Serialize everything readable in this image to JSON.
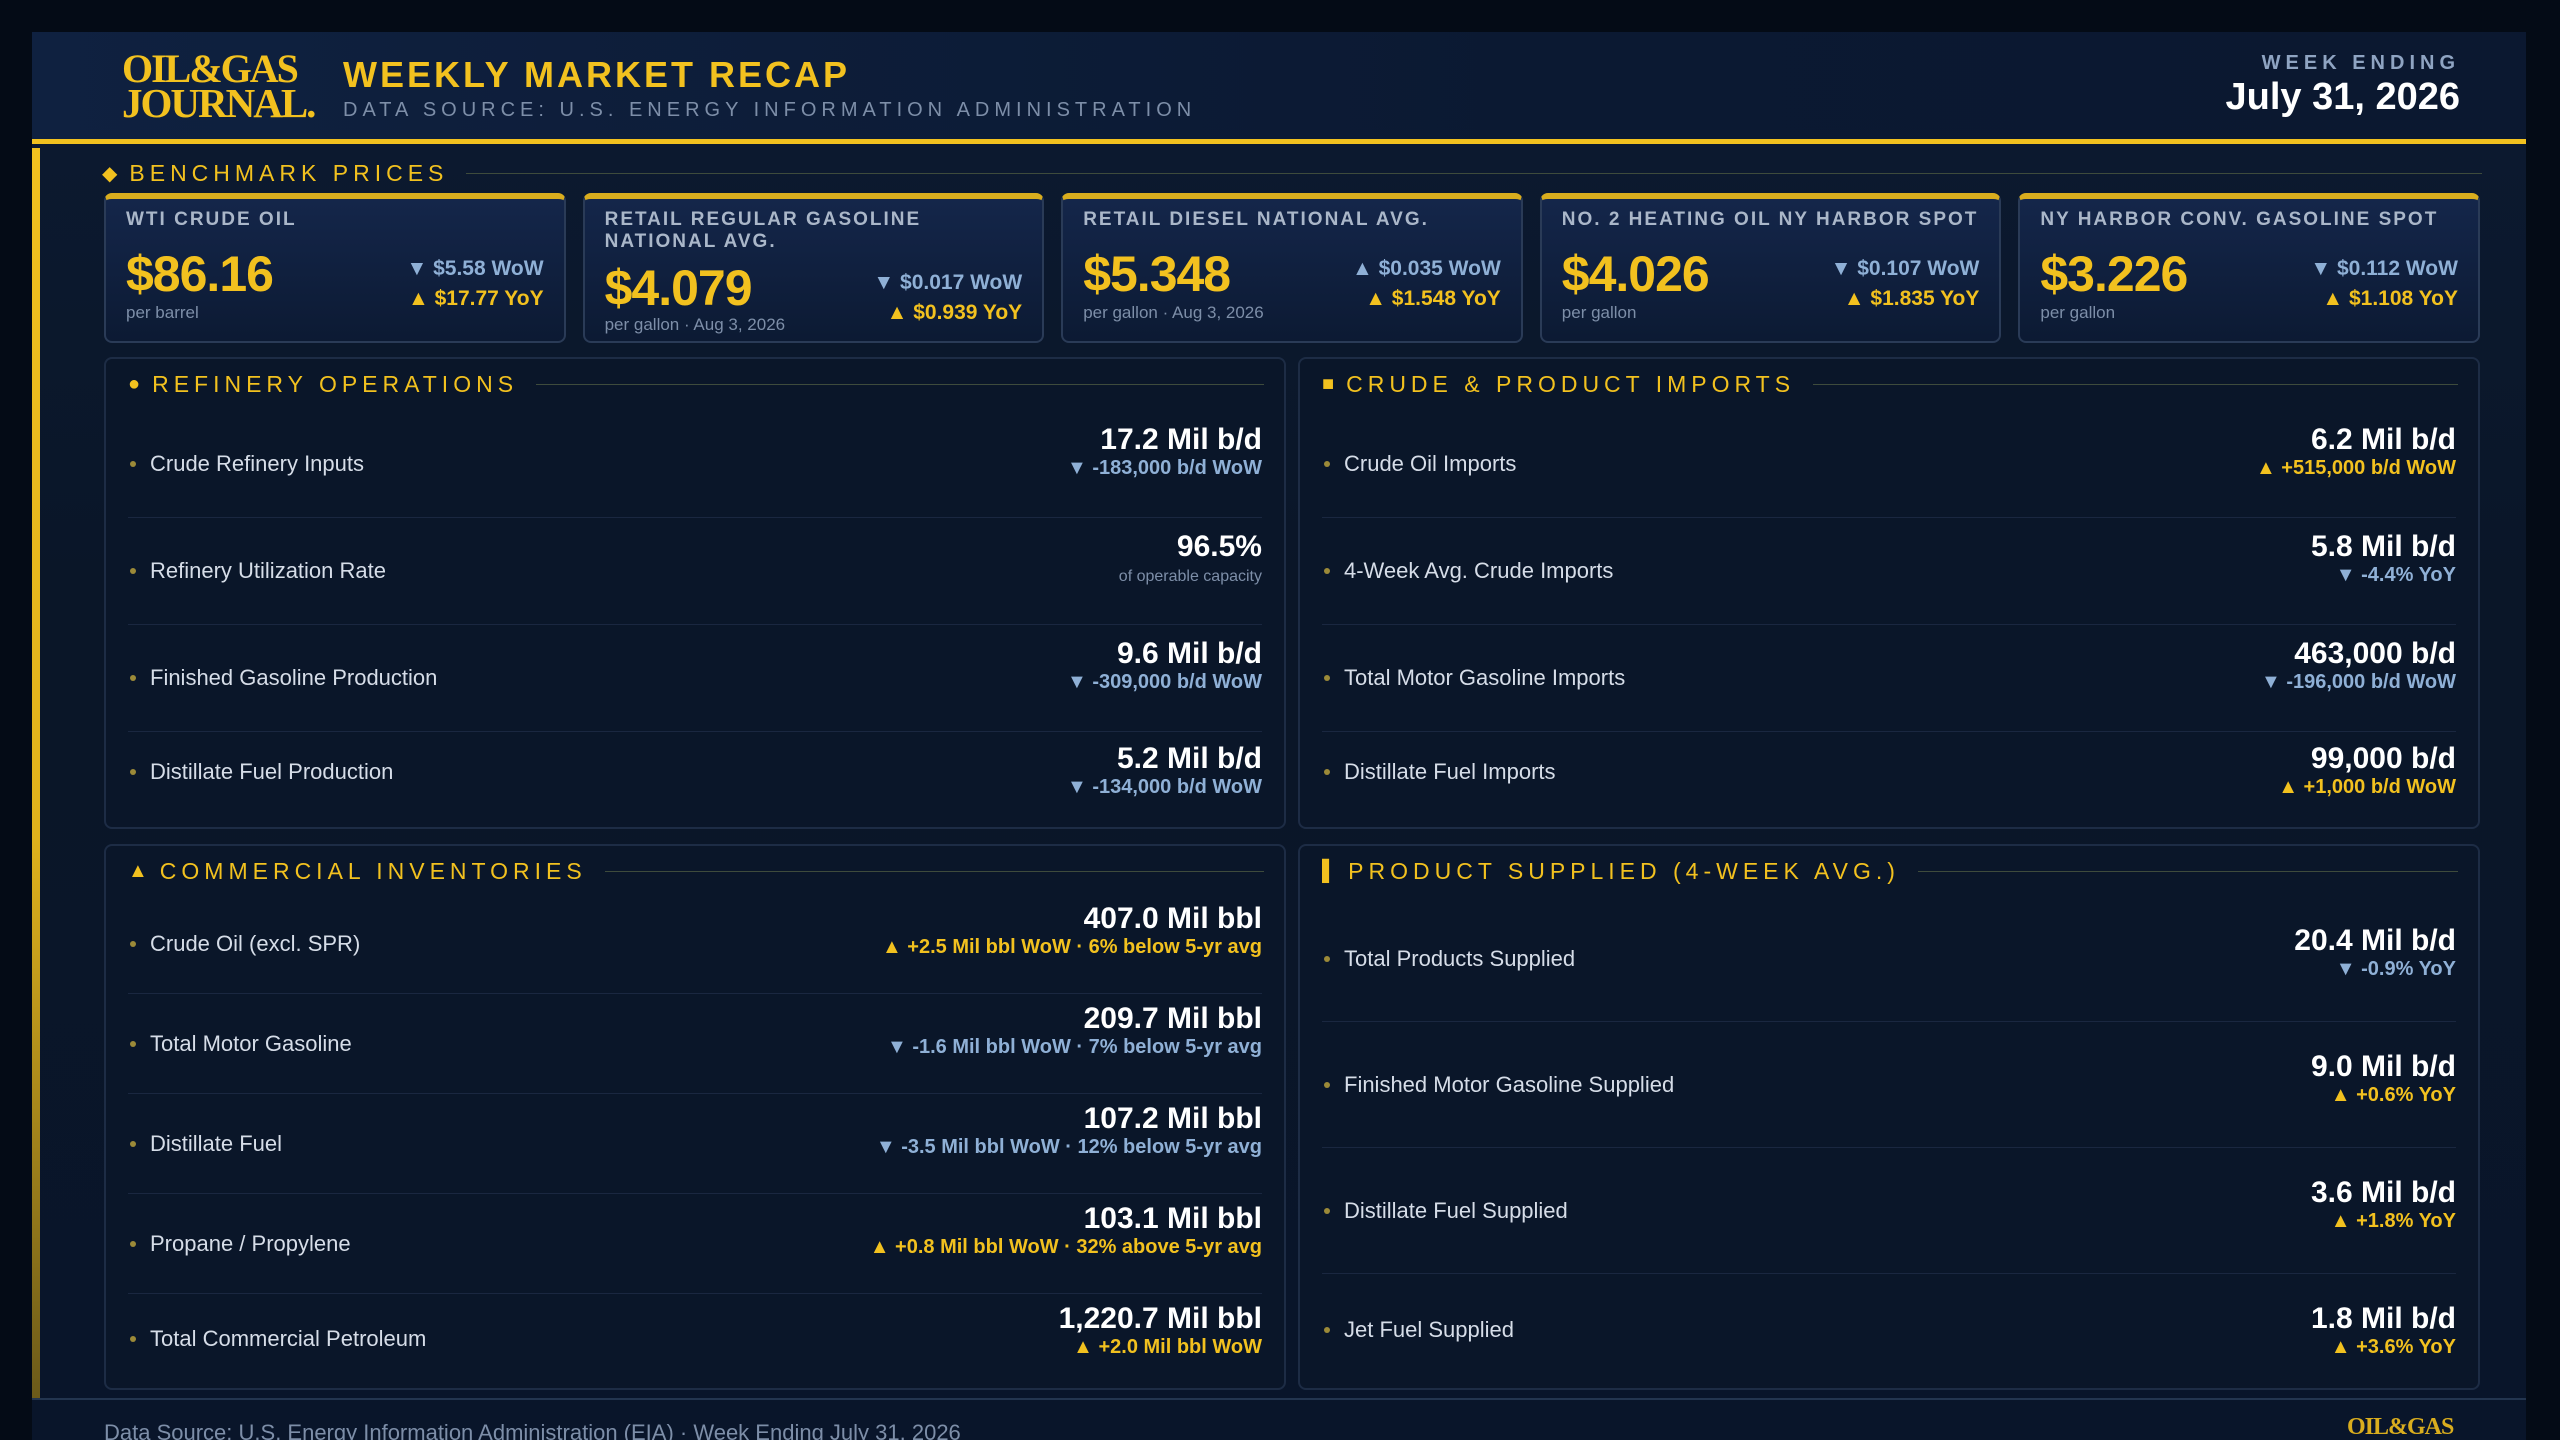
{
  "header": {
    "logo_line1": "OIL&GAS",
    "logo_line2": "JOURNAL.",
    "title": "WEEKLY MARKET RECAP",
    "subtitle": "DATA SOURCE: U.S. ENERGY INFORMATION ADMINISTRATION",
    "week_label": "WEEK ENDING",
    "week_date": "July 31, 2026"
  },
  "benchmark": {
    "title": "BENCHMARK PRICES",
    "cards": [
      {
        "name": "WTI CRUDE OIL",
        "price": "$86.16",
        "unit": "per barrel",
        "wow": "▼ $5.58 WoW",
        "yoy": "▲ $17.77 YoY"
      },
      {
        "name": "RETAIL REGULAR GASOLINE NATIONAL AVG.",
        "price": "$4.079",
        "unit": "per gallon · Aug 3, 2026",
        "wow": "▼ $0.017 WoW",
        "yoy": "▲ $0.939 YoY"
      },
      {
        "name": "RETAIL DIESEL NATIONAL AVG.",
        "price": "$5.348",
        "unit": "per gallon · Aug 3, 2026",
        "wow": "▲ $0.035 WoW",
        "yoy": "▲ $1.548 YoY"
      },
      {
        "name": "NO. 2 HEATING OIL NY HARBOR SPOT",
        "price": "$4.026",
        "unit": "per gallon",
        "wow": "▼ $0.107 WoW",
        "yoy": "▲ $1.835 YoY"
      },
      {
        "name": "NY HARBOR CONV. GASOLINE SPOT",
        "price": "$3.226",
        "unit": "per gallon",
        "wow": "▼ $0.112 WoW",
        "yoy": "▲ $1.108 YoY"
      }
    ]
  },
  "refinery": {
    "title": "REFINERY OPERATIONS",
    "rows": [
      {
        "name": "Crude Refinery Inputs",
        "value": "17.2 Mil b/d",
        "change": "▼ -183,000 b/d WoW"
      },
      {
        "name": "Refinery Utilization Rate",
        "value": "96.5%",
        "note": "of operable capacity"
      },
      {
        "name": "Finished Gasoline Production",
        "value": "9.6 Mil b/d",
        "change": "▼ -309,000 b/d WoW"
      },
      {
        "name": "Distillate Fuel Production",
        "value": "5.2 Mil b/d",
        "change": "▼ -134,000 b/d WoW"
      }
    ]
  },
  "imports": {
    "title": "CRUDE & PRODUCT IMPORTS",
    "rows": [
      {
        "name": "Crude Oil Imports",
        "value": "6.2 Mil b/d",
        "change": "▲ +515,000 b/d WoW"
      },
      {
        "name": "4-Week Avg. Crude Imports",
        "value": "5.8 Mil b/d",
        "change": "▼ -4.4% YoY"
      },
      {
        "name": "Total Motor Gasoline Imports",
        "value": "463,000 b/d",
        "change": "▼ -196,000 b/d WoW"
      },
      {
        "name": "Distillate Fuel Imports",
        "value": "99,000 b/d",
        "change": "▲ +1,000 b/d WoW"
      }
    ]
  },
  "inventories": {
    "title": "COMMERCIAL INVENTORIES",
    "rows": [
      {
        "name": "Crude Oil (excl. SPR)",
        "value": "407.0 Mil bbl",
        "change": "▲ +2.5 Mil bbl WoW · 6% below 5-yr avg"
      },
      {
        "name": "Total Motor Gasoline",
        "value": "209.7 Mil bbl",
        "change": "▼ -1.6 Mil bbl WoW · 7% below 5-yr avg"
      },
      {
        "name": "Distillate Fuel",
        "value": "107.2 Mil bbl",
        "change": "▼ -3.5 Mil bbl WoW · 12% below 5-yr avg"
      },
      {
        "name": "Propane / Propylene",
        "value": "103.1 Mil bbl",
        "change": "▲ +0.8 Mil bbl WoW · 32% above 5-yr avg"
      },
      {
        "name": "Total Commercial Petroleum",
        "value": "1,220.7 Mil bbl",
        "change": "▲ +2.0 Mil bbl WoW"
      }
    ]
  },
  "supplied": {
    "title": "PRODUCT SUPPLIED (4-WEEK AVG.)",
    "rows": [
      {
        "name": "Total Products Supplied",
        "value": "20.4 Mil b/d",
        "change": "▼ -0.9% YoY"
      },
      {
        "name": "Finished Motor Gasoline Supplied",
        "value": "9.0 Mil b/d",
        "change": "▲ +0.6% YoY"
      },
      {
        "name": "Distillate Fuel Supplied",
        "value": "3.6 Mil b/d",
        "change": "▲ +1.8% YoY"
      },
      {
        "name": "Jet Fuel Supplied",
        "value": "1.8 Mil b/d",
        "change": "▲ +3.6% YoY"
      }
    ]
  },
  "footer": {
    "text": "Data Source: U.S. Energy Information Administration (EIA)  ·  Week Ending July 31, 2026",
    "logo": "OIL&GAS"
  },
  "colors": {
    "accent": "#f2c11f",
    "up": "#f2c11f",
    "down": "#8fb0d6",
    "background": "#0a1629"
  }
}
